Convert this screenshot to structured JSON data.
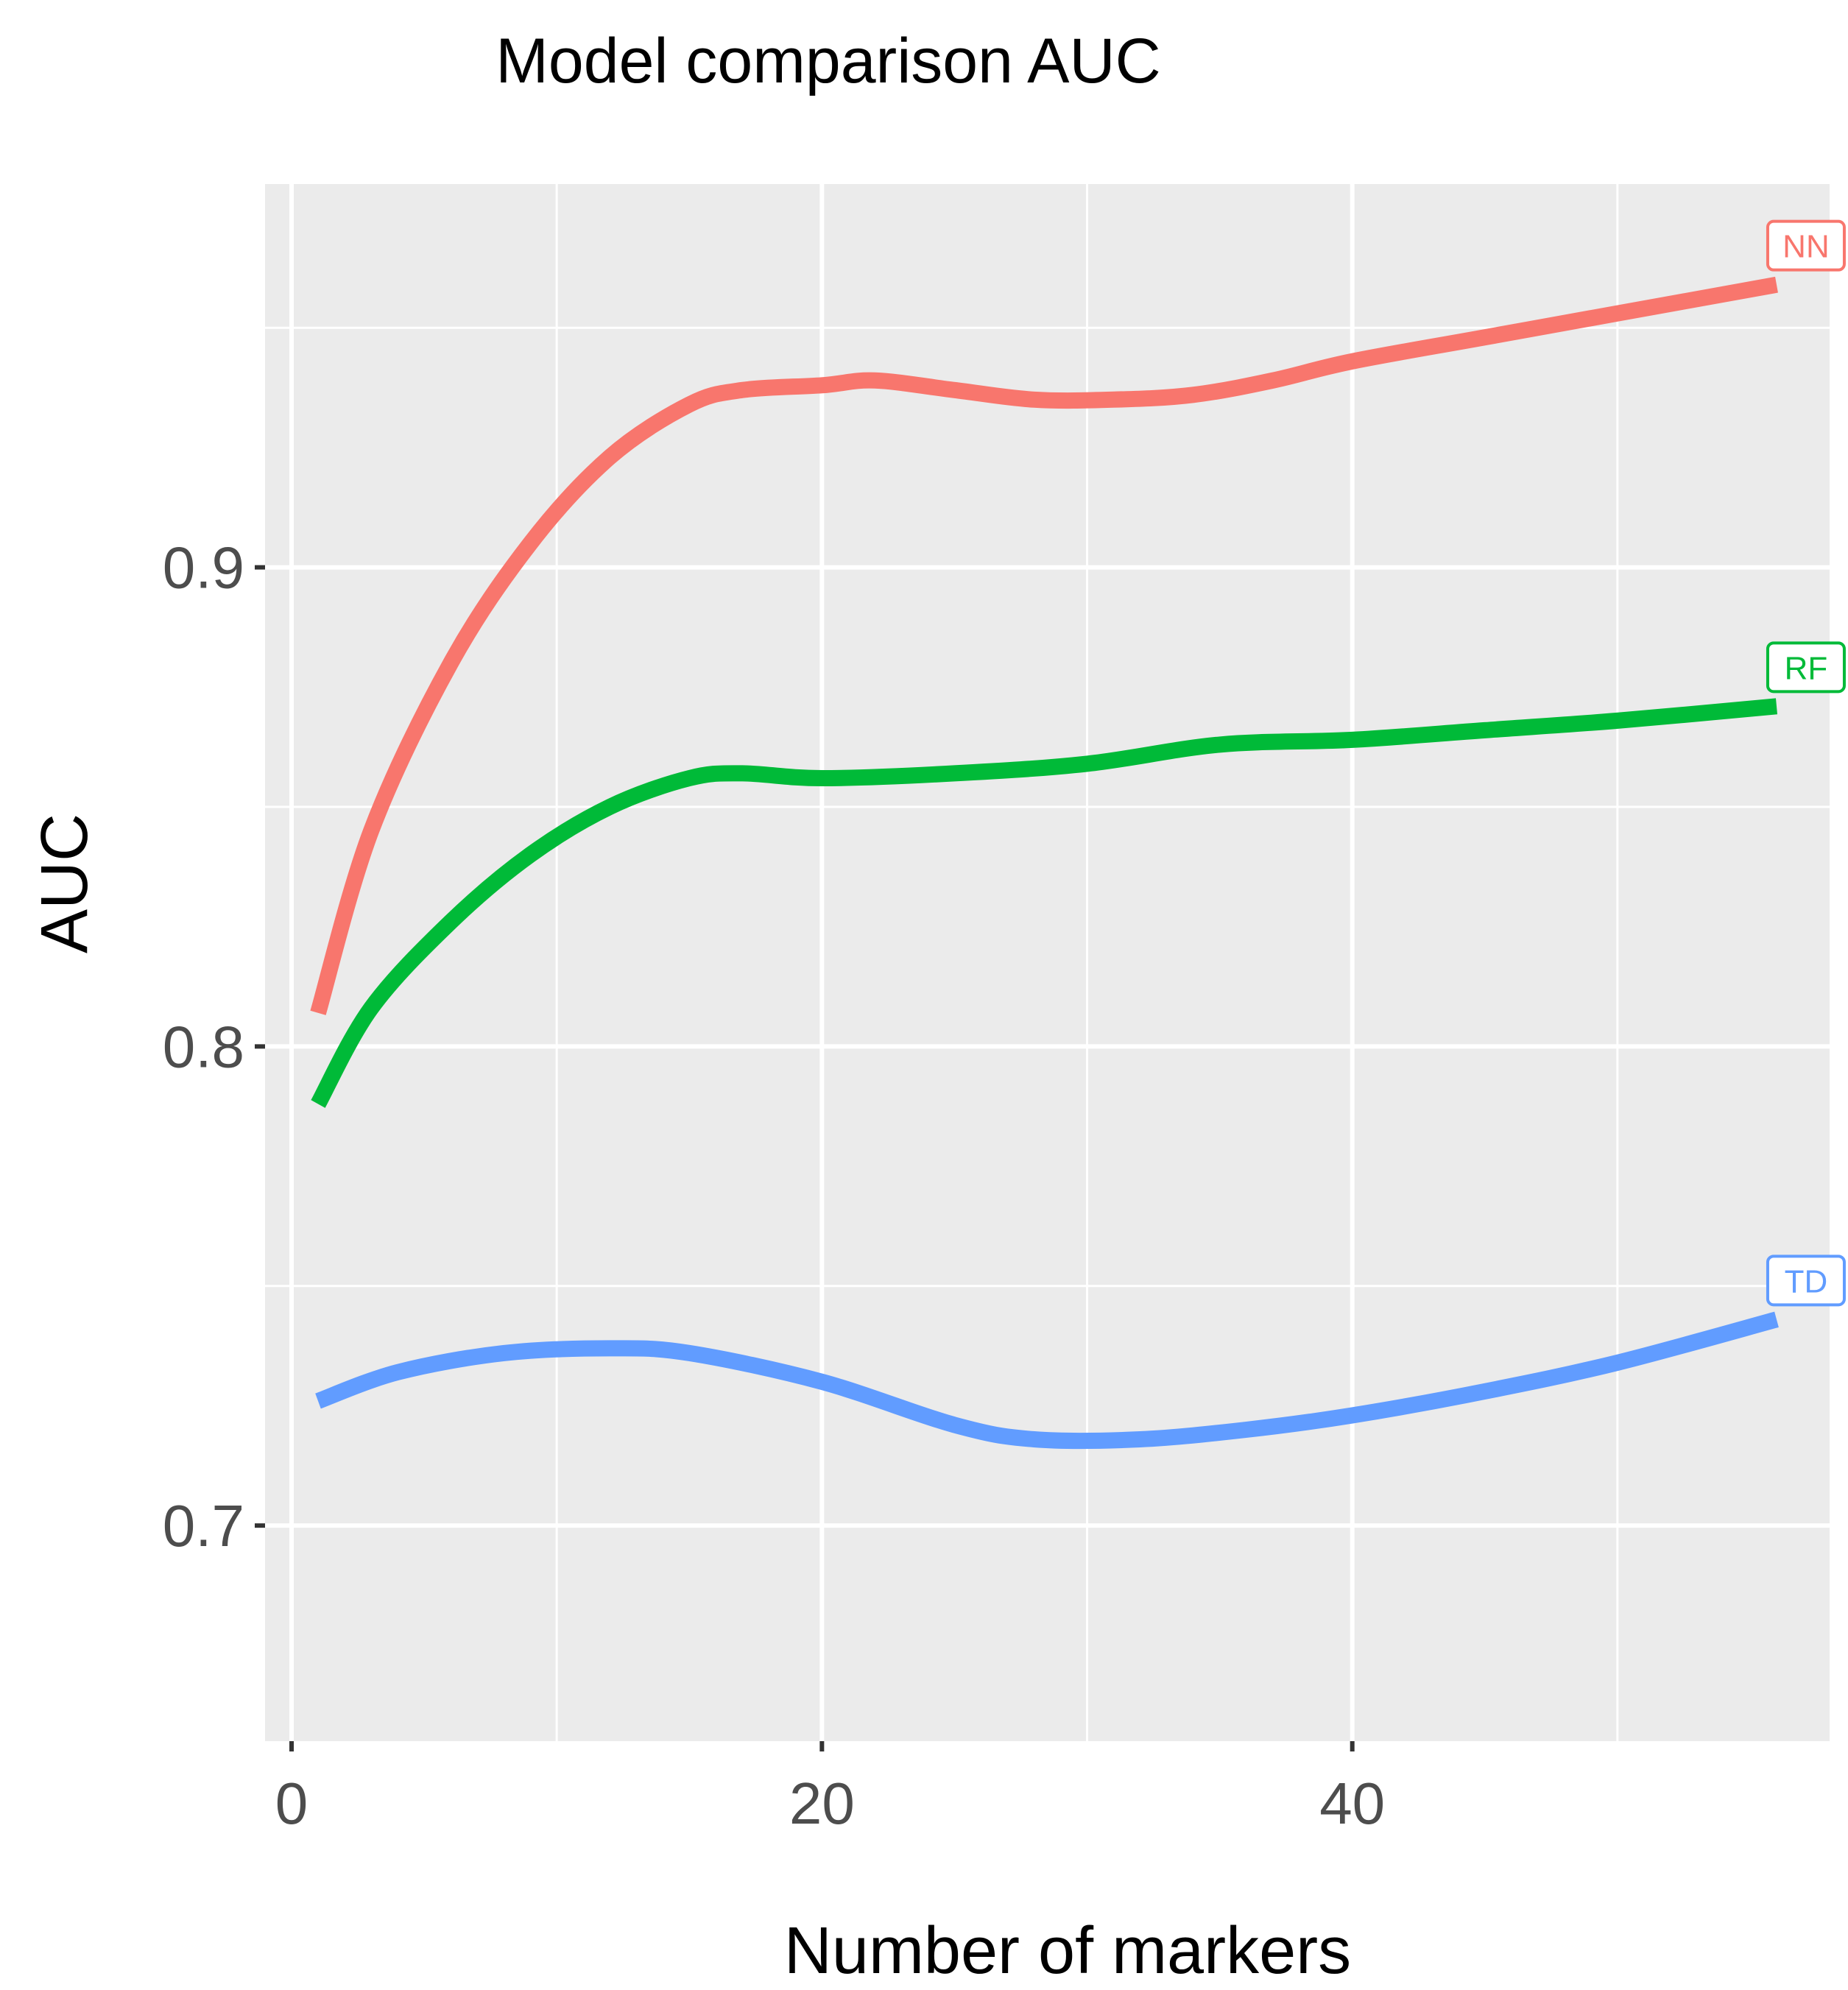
{
  "chart_data": {
    "type": "line",
    "title": "Model comparison AUC",
    "xlabel": "Number of markers",
    "ylabel": "AUC",
    "xlim": [
      -1,
      58
    ],
    "ylim": [
      0.655,
      0.98
    ],
    "x_ticks": [
      0,
      20,
      40
    ],
    "x_tick_labels": [
      "0",
      "20",
      "40"
    ],
    "x_minor_ticks": [
      10,
      30,
      50
    ],
    "y_ticks": [
      0.7,
      0.8,
      0.9
    ],
    "y_tick_labels": [
      "0.7",
      "0.8",
      "0.9"
    ],
    "y_minor_ticks": [
      0.75,
      0.85,
      0.95
    ],
    "grid": true,
    "legend": "direct labels at line ends",
    "series": [
      {
        "name": "NN",
        "color": "#F8766D",
        "x": [
          1,
          3,
          6,
          9,
          12,
          15,
          17,
          20,
          22,
          25,
          28,
          31,
          34,
          37,
          40,
          45,
          50,
          56
        ],
        "y": [
          0.807,
          0.845,
          0.88,
          0.905,
          0.923,
          0.934,
          0.937,
          0.938,
          0.939,
          0.937,
          0.935,
          0.935,
          0.936,
          0.939,
          0.943,
          0.948,
          0.953,
          0.959
        ]
      },
      {
        "name": "RF",
        "color": "#00BA38",
        "x": [
          1,
          3,
          6,
          9,
          12,
          15,
          17,
          20,
          25,
          30,
          35,
          40,
          45,
          50,
          56
        ],
        "y": [
          0.788,
          0.808,
          0.826,
          0.84,
          0.85,
          0.856,
          0.857,
          0.856,
          0.857,
          0.859,
          0.863,
          0.864,
          0.866,
          0.868,
          0.871
        ]
      },
      {
        "name": "TD",
        "color": "#619CFF",
        "x": [
          1,
          4,
          8,
          12,
          15,
          20,
          25,
          28,
          32,
          36,
          40,
          45,
          50,
          56
        ],
        "y": [
          0.726,
          0.732,
          0.736,
          0.737,
          0.736,
          0.73,
          0.721,
          0.718,
          0.718,
          0.72,
          0.723,
          0.728,
          0.734,
          0.743
        ]
      }
    ]
  }
}
